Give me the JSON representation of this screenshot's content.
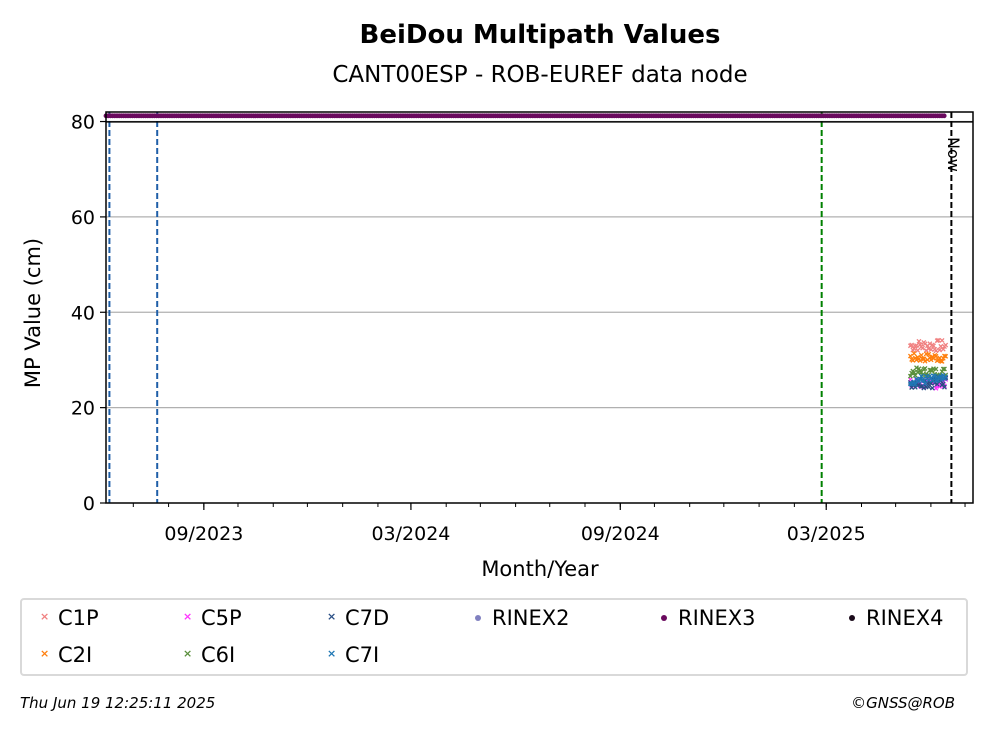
{
  "chart_data": {
    "type": "scatter",
    "title": "BeiDou Multipath Values",
    "subtitle": "CANT00ESP - ROB-EUREF data node",
    "xlabel": "Month/Year",
    "ylabel": "MP Value (cm)",
    "x_ticks": [
      "09/2023",
      "03/2024",
      "09/2024",
      "03/2025"
    ],
    "x_tick_dates": [
      "2023-09-01",
      "2024-03-01",
      "2024-09-01",
      "2025-03-01"
    ],
    "xlim": [
      "2023-06-07",
      "2025-07-08"
    ],
    "ylim": [
      0,
      82
    ],
    "y_ticks": [
      0,
      20,
      40,
      60,
      80
    ],
    "grid": "horizontal",
    "vertical_lines": [
      {
        "date": "2023-06-10",
        "color": "#1f5fa8",
        "style": "dashed"
      },
      {
        "date": "2023-07-22",
        "color": "#1f5fa8",
        "style": "dashed"
      },
      {
        "date": "2025-02-25",
        "color": "#008000",
        "style": "dashed"
      },
      {
        "date": "2025-06-19",
        "color": "#000000",
        "style": "dashed",
        "label": "Now"
      }
    ],
    "rinex3_band": {
      "name": "RINEX3",
      "y": 81.2,
      "start": "2023-06-07",
      "end": "2025-06-14",
      "color": "#6a0a5e"
    },
    "series": [
      {
        "name": "C1P",
        "color": "#f08080",
        "marker": "x",
        "start": "2025-05-14",
        "end": "2025-06-14",
        "mean": 33.0,
        "spread": 1.2
      },
      {
        "name": "C2I",
        "color": "#ff7f0e",
        "marker": "x",
        "start": "2025-05-14",
        "end": "2025-06-14",
        "mean": 30.5,
        "spread": 0.9
      },
      {
        "name": "C5P",
        "color": "#ff33ff",
        "marker": "x",
        "start": "2025-05-14",
        "end": "2025-06-14",
        "mean": 25.0,
        "spread": 1.0
      },
      {
        "name": "C6I",
        "color": "#5a8f3c",
        "marker": "x",
        "start": "2025-05-14",
        "end": "2025-06-14",
        "mean": 27.5,
        "spread": 0.9
      },
      {
        "name": "C7D",
        "color": "#2a4f85",
        "marker": "x",
        "start": "2025-05-14",
        "end": "2025-06-14",
        "mean": 25.3,
        "spread": 1.2
      },
      {
        "name": "C7I",
        "color": "#1f77b4",
        "marker": "x",
        "start": "2025-05-14",
        "end": "2025-06-14",
        "mean": 25.8,
        "spread": 1.0
      }
    ],
    "legend": [
      {
        "label": "C1P",
        "color": "#f08080",
        "marker": "x"
      },
      {
        "label": "C5P",
        "color": "#ff33ff",
        "marker": "x"
      },
      {
        "label": "C7D",
        "color": "#2a4f85",
        "marker": "x"
      },
      {
        "label": "RINEX2",
        "color": "#8080c0",
        "marker": "dot"
      },
      {
        "label": "RINEX3",
        "color": "#6a0a5e",
        "marker": "dot"
      },
      {
        "label": "RINEX4",
        "color": "#1a0a1a",
        "marker": "dot"
      },
      {
        "label": "C2I",
        "color": "#ff7f0e",
        "marker": "x"
      },
      {
        "label": "C6I",
        "color": "#5a8f3c",
        "marker": "x"
      },
      {
        "label": "C7I",
        "color": "#1f77b4",
        "marker": "x"
      }
    ],
    "legend_placement": "bottom"
  },
  "footer": {
    "timestamp": "Thu Jun 19 12:25:11 2025",
    "credit": "©GNSS@ROB"
  }
}
